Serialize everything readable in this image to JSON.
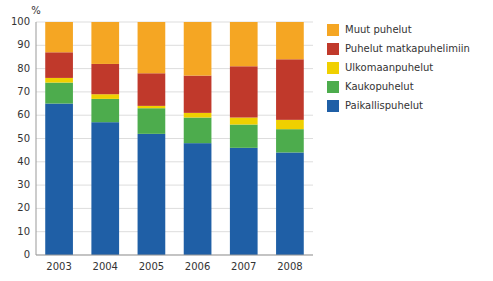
{
  "chart_data": {
    "type": "bar",
    "stacked": true,
    "ylabel": "%",
    "categories": [
      "2003",
      "2004",
      "2005",
      "2006",
      "2007",
      "2008"
    ],
    "series": [
      {
        "name": "Paikallispuhelut",
        "color": "#1f5fa6",
        "values": [
          65,
          57,
          52,
          48,
          46,
          44
        ]
      },
      {
        "name": "Kaukopuhelut",
        "color": "#4dac4d",
        "values": [
          9,
          10,
          11,
          11,
          10,
          10
        ]
      },
      {
        "name": "Ulkomaanpuhelut",
        "color": "#f0d000",
        "values": [
          2,
          2,
          1,
          2,
          3,
          4
        ]
      },
      {
        "name": "Puhelut matkapuhelimiin",
        "color": "#c0392b",
        "values": [
          11,
          13,
          14,
          16,
          22,
          26
        ]
      },
      {
        "name": "Muut puhelut",
        "color": "#f5a623",
        "values": [
          13,
          18,
          22,
          23,
          19,
          16
        ]
      }
    ],
    "ylim": [
      0,
      100
    ],
    "yticks": [
      0,
      10,
      20,
      30,
      40,
      50,
      60,
      70,
      80,
      90,
      100
    ],
    "grid": true,
    "legend": "right"
  }
}
